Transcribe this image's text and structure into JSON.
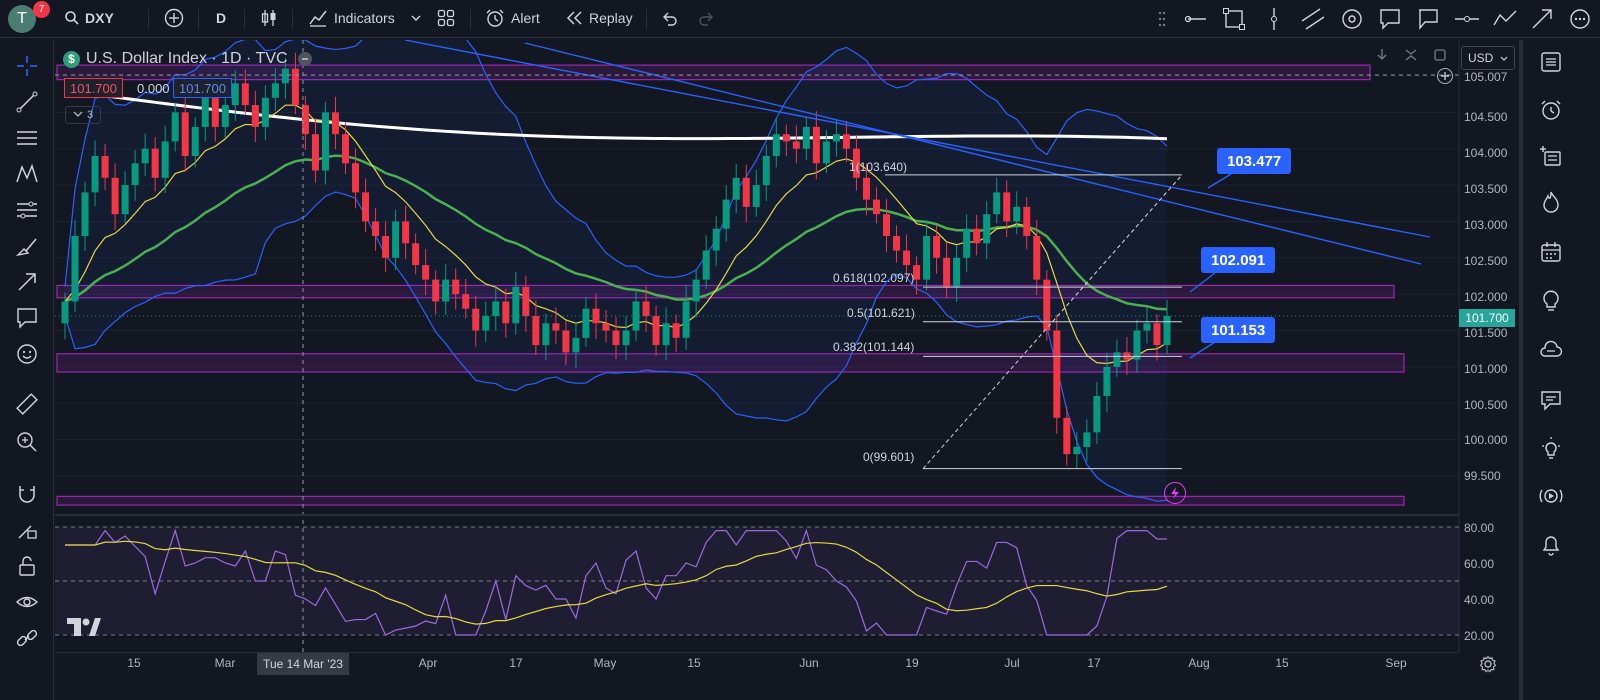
{
  "topbar": {
    "avatar_letter": "T",
    "notifications": "7",
    "symbol": "DXY",
    "interval": "D",
    "indicators_label": "Indicators",
    "alert_label": "Alert",
    "replay_label": "Replay"
  },
  "legend": {
    "title": "U.S. Dollar Index · 1D · TVC",
    "bid": "101.700",
    "spread": "0.000",
    "ask": "101.700",
    "collapsed_count": "3"
  },
  "price_axis": {
    "currency": "USD",
    "current_price": "101.700",
    "top_label": "105.007",
    "ticks": [
      "104.500",
      "104.000",
      "103.500",
      "103.000",
      "102.500",
      "102.000",
      "101.500",
      "101.000",
      "100.500",
      "100.000",
      "99.500"
    ]
  },
  "rsi_axis": {
    "ticks": [
      "80.00",
      "60.00",
      "40.00",
      "20.00"
    ]
  },
  "time_axis": {
    "labels": [
      "15",
      "Mar",
      "Apr",
      "17",
      "May",
      "15",
      "Jun",
      "19",
      "Jul",
      "17",
      "Aug",
      "15",
      "Sep"
    ],
    "crosshair_label": "Tue 14 Mar '23"
  },
  "fib_levels": [
    {
      "label": "1(103.640)",
      "value": 103.64
    },
    {
      "label": "0.618(102.097)",
      "value": 102.097
    },
    {
      "label": "0.5(101.621)",
      "value": 101.621
    },
    {
      "label": "0.382(101.144)",
      "value": 101.144
    },
    {
      "label": "0(99.601)",
      "value": 99.601
    }
  ],
  "callouts": [
    {
      "label": "103.477"
    },
    {
      "label": "102.091"
    },
    {
      "label": "101.153"
    }
  ],
  "colors": {
    "up": "#089981",
    "down": "#f23645",
    "sma_fast": "#e4d941",
    "sma_mid": "#4caf50",
    "sma_slow": "#ffffff",
    "bollinger": "#2962ff",
    "zone": "#9c27b0",
    "rsi": "#9c6ade",
    "rsi_ma": "#e4d941"
  },
  "chart_data": {
    "type": "candlestick",
    "title": "U.S. Dollar Index · 1D · TVC",
    "symbol": "DXY",
    "ylim": [
      99.2,
      105.0
    ],
    "closes": [
      101.9,
      102.8,
      103.4,
      103.9,
      103.6,
      103.1,
      103.5,
      103.8,
      104.0,
      103.6,
      104.1,
      104.5,
      103.9,
      104.3,
      104.7,
      104.3,
      104.6,
      104.9,
      104.6,
      104.3,
      104.7,
      104.9,
      105.1,
      104.6,
      104.2,
      103.7,
      104.5,
      104.2,
      103.8,
      103.4,
      103.0,
      102.8,
      102.5,
      103.0,
      102.7,
      102.4,
      102.2,
      101.9,
      102.2,
      102.0,
      101.8,
      101.5,
      101.7,
      101.9,
      101.6,
      102.1,
      101.7,
      101.3,
      101.6,
      101.5,
      101.2,
      101.4,
      101.8,
      101.6,
      101.5,
      101.3,
      101.5,
      101.9,
      101.7,
      101.3,
      101.6,
      101.4,
      101.9,
      102.2,
      102.6,
      102.9,
      103.3,
      103.6,
      103.2,
      103.5,
      103.9,
      104.2,
      104.1,
      104.0,
      104.3,
      103.8,
      104.1,
      104.2,
      104.0,
      103.6,
      103.3,
      103.1,
      102.8,
      102.6,
      102.4,
      102.2,
      102.8,
      102.5,
      102.1,
      102.5,
      102.9,
      102.7,
      103.1,
      103.4,
      103.0,
      103.2,
      102.8,
      102.2,
      101.5,
      100.3,
      99.8,
      99.9,
      100.1,
      100.6,
      101.0,
      101.2,
      101.1,
      101.5,
      101.6,
      101.3,
      101.7
    ]
  }
}
